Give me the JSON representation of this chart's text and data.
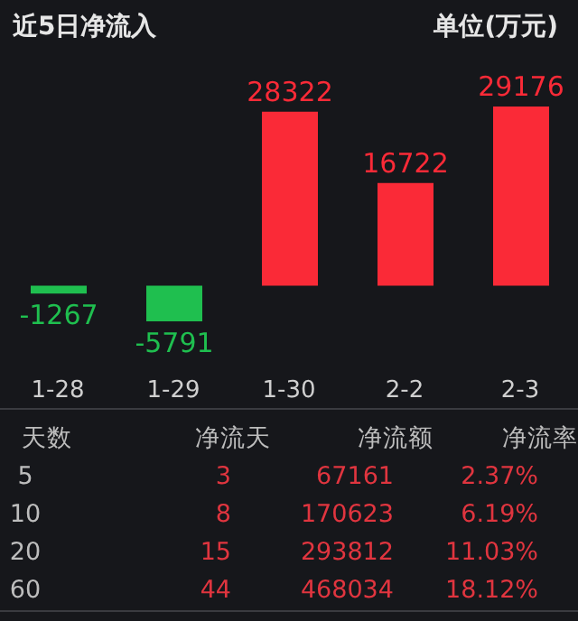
{
  "chart_data": [
    {
      "type": "bar",
      "title": "近5日净流入",
      "subtitle": "单位(万元)",
      "categories": [
        "1-28",
        "1-29",
        "1-30",
        "2-2",
        "2-3"
      ],
      "values": [
        -1267,
        -5791,
        28322,
        16722,
        29176
      ],
      "colors": [
        "#1fbf4f",
        "#1fbf4f",
        "#fa2a37",
        "#fa2a37",
        "#fa2a37"
      ],
      "data_labels": true
    },
    {
      "type": "other",
      "annotations": [
        "天数",
        "净流天",
        "净流额",
        "净流率",
        "5",
        "3",
        "67161",
        "2.37%",
        "10",
        "8",
        "170623",
        "6.19%",
        "20",
        "15",
        "293812",
        "11.03%",
        "60",
        "44",
        "468034",
        "18.12%"
      ]
    }
  ]
}
